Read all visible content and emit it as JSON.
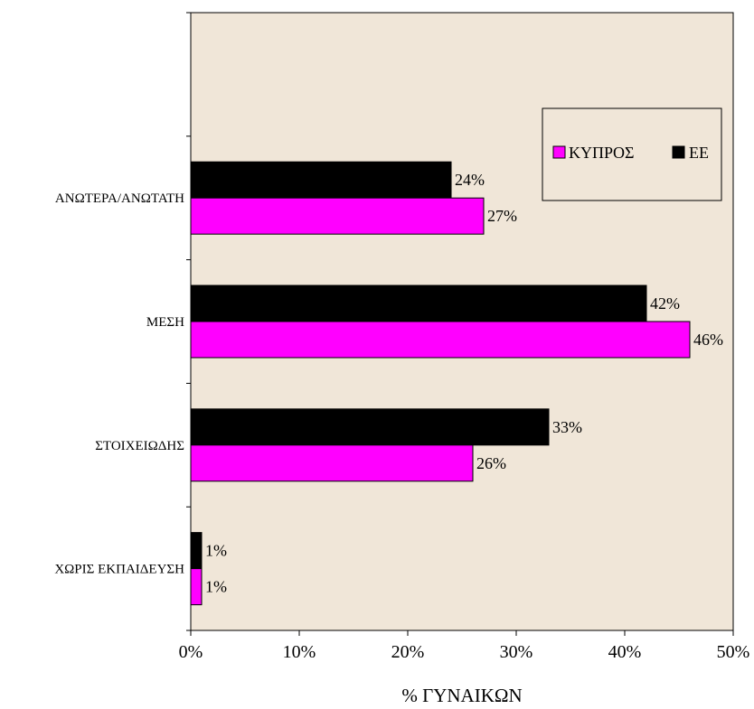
{
  "chart_data": {
    "type": "bar",
    "orientation": "horizontal",
    "categories": [
      "ΑΝΩΤΕΡΑ/ΑΝΩΤΑΤΗ",
      "ΜΕΣΗ",
      "ΣΤΟΙΧΕΙΩΔΗΣ",
      "ΧΩΡΙΣ ΕΚΠΑΙΔΕΥΣΗ"
    ],
    "series": [
      {
        "name": "ΕΕ",
        "color": "#000000",
        "values": [
          24,
          42,
          33,
          1
        ],
        "labels": [
          "24%",
          "42%",
          "33%",
          "1%"
        ]
      },
      {
        "name": "ΚΥΠΡΟΣ",
        "color": "#ff00ff",
        "values": [
          27,
          46,
          26,
          1
        ],
        "labels": [
          "27%",
          "46%",
          "26%",
          "1%"
        ]
      }
    ],
    "legend_order": [
      "ΚΥΠΡΟΣ",
      "ΕΕ"
    ],
    "legend_position": "top-right",
    "xlabel": "% ΓΥΝΑΙΚΩΝ",
    "xlim": [
      0,
      50
    ],
    "x_ticks": [
      0,
      10,
      20,
      30,
      40,
      50
    ],
    "x_tick_labels": [
      "0%",
      "10%",
      "20%",
      "30%",
      "40%",
      "50%"
    ],
    "plot_background": "#f0e6d8",
    "grid": false
  }
}
